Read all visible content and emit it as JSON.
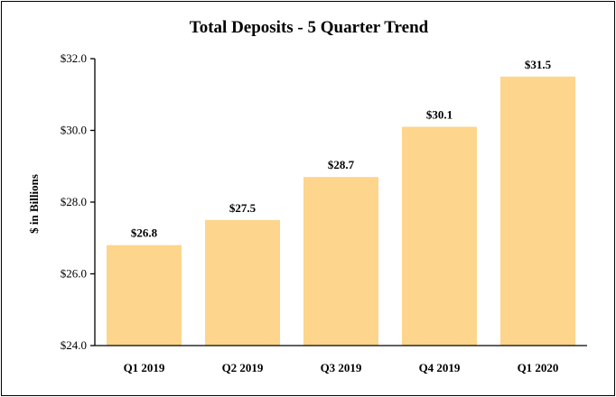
{
  "chart_data": {
    "type": "bar",
    "title": "Total Deposits - 5 Quarter Trend",
    "xlabel": "",
    "ylabel": "$ in Billions",
    "categories": [
      "Q1 2019",
      "Q2 2019",
      "Q3 2019",
      "Q4 2019",
      "Q1 2020"
    ],
    "values": [
      26.8,
      27.5,
      28.7,
      30.1,
      31.5
    ],
    "data_labels": [
      "$26.8",
      "$27.5",
      "$28.7",
      "$30.1",
      "$31.5"
    ],
    "ylim": [
      24.0,
      32.0
    ],
    "yticks": [
      24.0,
      26.0,
      28.0,
      30.0,
      32.0
    ],
    "ytick_labels": [
      "$24.0",
      "$26.0",
      "$28.0",
      "$30.0",
      "$32.0"
    ],
    "grid": false,
    "legend": "none",
    "bar_color": "#FDD58C"
  }
}
